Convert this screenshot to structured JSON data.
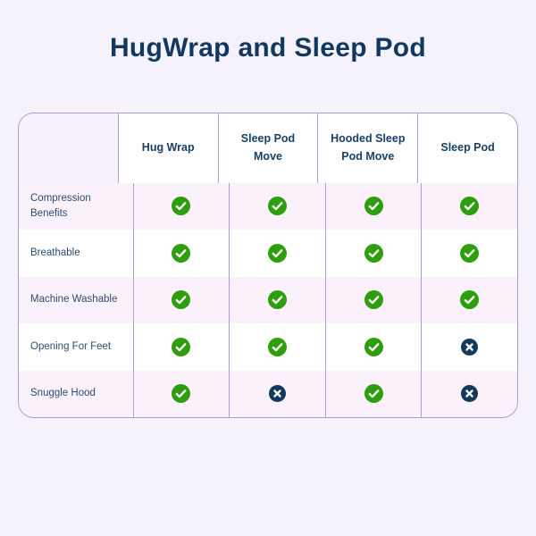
{
  "page": {
    "title": "HugWrap and Sleep Pod",
    "background": "#f6f2fc"
  },
  "colors": {
    "title_navy": "#11395f",
    "header_navy": "#1a4066",
    "label_navy": "#2d4c70",
    "border_purple": "#a99cd7",
    "row_tint": "#faf1fb",
    "row_white": "#ffffff",
    "check_green": "#2f9e0e",
    "cross_navy": "#133a5c",
    "icon_mark_white": "#ffffff"
  },
  "table": {
    "feature_column_header": "",
    "columns": [
      "Hug Wrap",
      "Sleep Pod Move",
      "Hooded Sleep Pod Move",
      "Sleep Pod"
    ],
    "rows": [
      {
        "feature": "Compression Benefits",
        "values": [
          "check",
          "check",
          "check",
          "check"
        ]
      },
      {
        "feature": "Breathable",
        "values": [
          "check",
          "check",
          "check",
          "check"
        ]
      },
      {
        "feature": "Machine Washable",
        "values": [
          "check",
          "check",
          "check",
          "check"
        ]
      },
      {
        "feature": "Opening For Feet",
        "values": [
          "check",
          "check",
          "check",
          "cross"
        ]
      },
      {
        "feature": "Snuggle Hood",
        "values": [
          "check",
          "cross",
          "check",
          "cross"
        ]
      }
    ],
    "icon_meanings": {
      "check": "feature-included",
      "cross": "feature-not-included"
    }
  }
}
